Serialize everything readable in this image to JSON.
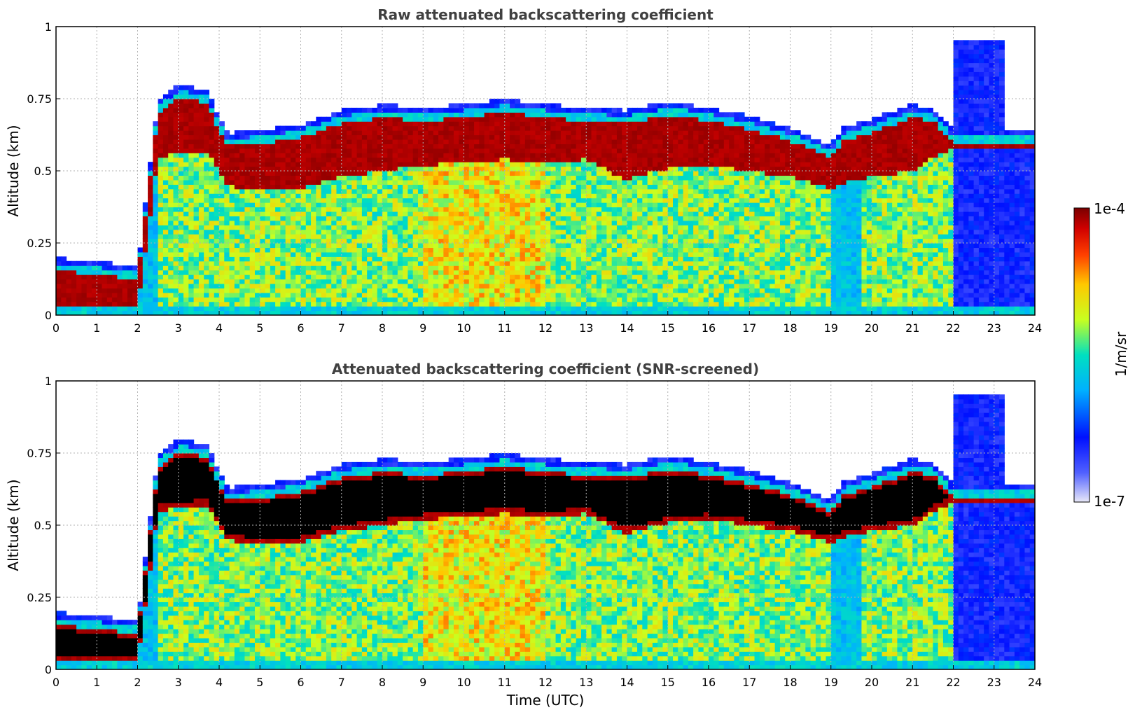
{
  "chart_data": [
    {
      "type": "heatmap",
      "title": "Raw attenuated backscattering coefficient",
      "xlabel": "",
      "ylabel": "Altitude (km)",
      "xlim": [
        0,
        24
      ],
      "ylim": [
        0,
        1
      ],
      "xticks": [
        "0",
        "1",
        "2",
        "3",
        "4",
        "5",
        "6",
        "7",
        "8",
        "9",
        "10",
        "11",
        "12",
        "13",
        "14",
        "15",
        "16",
        "17",
        "18",
        "19",
        "20",
        "21",
        "22",
        "23",
        "24"
      ],
      "yticks": [
        "0",
        "0.25",
        "0.5",
        "0.75",
        "1"
      ],
      "grid": true,
      "screened": false,
      "features": {
        "cloud_layer_top_km": [
          [
            0,
            0.18
          ],
          [
            2,
            0.15
          ],
          [
            2.5,
            0.72
          ],
          [
            3,
            0.78
          ],
          [
            3.7,
            0.76
          ],
          [
            4.2,
            0.61
          ],
          [
            5,
            0.62
          ],
          [
            6,
            0.64
          ],
          [
            7,
            0.69
          ],
          [
            8,
            0.71
          ],
          [
            9,
            0.7
          ],
          [
            10,
            0.71
          ],
          [
            11,
            0.73
          ],
          [
            12,
            0.71
          ],
          [
            13,
            0.7
          ],
          [
            14,
            0.69
          ],
          [
            15,
            0.72
          ],
          [
            16,
            0.7
          ],
          [
            17,
            0.67
          ],
          [
            18,
            0.63
          ],
          [
            19,
            0.57
          ],
          [
            19.3,
            0.63
          ],
          [
            20,
            0.66
          ],
          [
            21,
            0.71
          ],
          [
            21.5,
            0.7
          ],
          [
            22,
            0.62
          ]
        ],
        "cloud_layer_base_km": [
          [
            0,
            0.03
          ],
          [
            2,
            0.02
          ],
          [
            2.5,
            0.55
          ],
          [
            3,
            0.56
          ],
          [
            3.7,
            0.57
          ],
          [
            4.2,
            0.45
          ],
          [
            5,
            0.43
          ],
          [
            6,
            0.44
          ],
          [
            7,
            0.48
          ],
          [
            8,
            0.5
          ],
          [
            9,
            0.52
          ],
          [
            10,
            0.53
          ],
          [
            11,
            0.54
          ],
          [
            12,
            0.53
          ],
          [
            13,
            0.54
          ],
          [
            14,
            0.47
          ],
          [
            15,
            0.51
          ],
          [
            16,
            0.52
          ],
          [
            17,
            0.5
          ],
          [
            18,
            0.48
          ],
          [
            19,
            0.44
          ],
          [
            19.3,
            0.46
          ],
          [
            20,
            0.48
          ],
          [
            21,
            0.5
          ],
          [
            21.5,
            0.55
          ],
          [
            22,
            0.58
          ]
        ],
        "surface_return_top_km": 0.03
      }
    },
    {
      "type": "heatmap",
      "title": "Attenuated backscattering coefficient (SNR-screened)",
      "xlabel": "Time (UTC)",
      "ylabel": "Altitude (km)",
      "xlim": [
        0,
        24
      ],
      "ylim": [
        0,
        1
      ],
      "xticks": [
        "0",
        "1",
        "2",
        "3",
        "4",
        "5",
        "6",
        "7",
        "8",
        "9",
        "10",
        "11",
        "12",
        "13",
        "14",
        "15",
        "16",
        "17",
        "18",
        "19",
        "20",
        "21",
        "22",
        "23",
        "24"
      ],
      "yticks": [
        "0",
        "0.25",
        "0.5",
        "0.75",
        "1"
      ],
      "grid": true,
      "screened": true,
      "features": {
        "cloud_layer_top_km": [
          [
            0,
            0.18
          ],
          [
            2,
            0.15
          ],
          [
            2.5,
            0.72
          ],
          [
            3,
            0.78
          ],
          [
            3.7,
            0.76
          ],
          [
            4.2,
            0.61
          ],
          [
            5,
            0.62
          ],
          [
            6,
            0.64
          ],
          [
            7,
            0.69
          ],
          [
            8,
            0.71
          ],
          [
            9,
            0.7
          ],
          [
            10,
            0.71
          ],
          [
            11,
            0.73
          ],
          [
            12,
            0.71
          ],
          [
            13,
            0.7
          ],
          [
            14,
            0.69
          ],
          [
            15,
            0.72
          ],
          [
            16,
            0.7
          ],
          [
            17,
            0.67
          ],
          [
            18,
            0.63
          ],
          [
            19,
            0.57
          ],
          [
            19.3,
            0.63
          ],
          [
            20,
            0.66
          ],
          [
            21,
            0.71
          ],
          [
            21.5,
            0.7
          ],
          [
            22,
            0.62
          ]
        ],
        "cloud_layer_base_km": [
          [
            0,
            0.03
          ],
          [
            2,
            0.02
          ],
          [
            2.5,
            0.55
          ],
          [
            3,
            0.56
          ],
          [
            3.7,
            0.57
          ],
          [
            4.2,
            0.45
          ],
          [
            5,
            0.43
          ],
          [
            6,
            0.44
          ],
          [
            7,
            0.48
          ],
          [
            8,
            0.5
          ],
          [
            9,
            0.52
          ],
          [
            10,
            0.53
          ],
          [
            11,
            0.54
          ],
          [
            12,
            0.53
          ],
          [
            13,
            0.54
          ],
          [
            14,
            0.47
          ],
          [
            15,
            0.51
          ],
          [
            16,
            0.52
          ],
          [
            17,
            0.5
          ],
          [
            18,
            0.48
          ],
          [
            19,
            0.44
          ],
          [
            19.3,
            0.46
          ],
          [
            20,
            0.48
          ],
          [
            21,
            0.5
          ],
          [
            21.5,
            0.55
          ],
          [
            22,
            0.58
          ]
        ],
        "surface_return_top_km": 0.03
      }
    }
  ],
  "colorbar": {
    "label": "1/m/sr",
    "max_label": "1e-4",
    "min_label": "1e-7",
    "scale": "log",
    "range": [
      1e-07,
      0.0001
    ],
    "colormap": [
      "#e8e8f8",
      "#0000ff",
      "#00c8ff",
      "#c8ff00",
      "#ffa000",
      "#ff2000",
      "#800000"
    ]
  }
}
